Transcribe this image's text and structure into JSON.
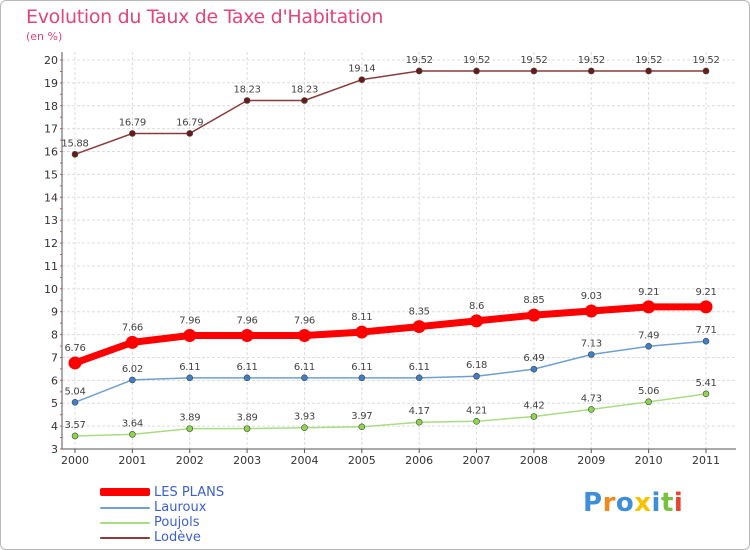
{
  "title": "Evolution du Taux de Taxe d'Habitation",
  "unit": "(en %)",
  "logo": "Proxiti",
  "chart_data": {
    "type": "line",
    "title": "Evolution du Taux de Taxe d'Habitation",
    "ylabel": "(en %)",
    "xlabel": "",
    "ylim": [
      3,
      20
    ],
    "yticks": [
      "3",
      "4",
      "5",
      "6",
      "7",
      "8",
      "9",
      "10",
      "11",
      "12",
      "13",
      "14",
      "15",
      "16",
      "17",
      "18",
      "19",
      "20"
    ],
    "categories": [
      "2000",
      "2001",
      "2002",
      "2003",
      "2004",
      "2005",
      "2006",
      "2007",
      "2008",
      "2009",
      "2010",
      "2011"
    ],
    "grid": true,
    "legend_position": "bottom-left",
    "series": [
      {
        "name": "LES PLANS",
        "color": "#ff0000",
        "marker": "#ff0000",
        "labels": [
          "6.76",
          "7.66",
          "7.96",
          "7.96",
          "7.96",
          "8.11",
          "8.35",
          "8.6",
          "8.85",
          "9.03",
          "9.21",
          "9.21"
        ],
        "values": [
          6.76,
          7.66,
          7.96,
          7.96,
          7.96,
          8.11,
          8.35,
          8.6,
          8.85,
          9.03,
          9.21,
          9.21
        ]
      },
      {
        "name": "Lauroux",
        "color": "#6f9fd3",
        "marker": "#3f7fc8",
        "labels": [
          "5.04",
          "6.02",
          "6.11",
          "6.11",
          "6.11",
          "6.11",
          "6.11",
          "6.18",
          "6.49",
          "7.13",
          "7.49",
          "7.71"
        ],
        "values": [
          5.04,
          6.02,
          6.11,
          6.11,
          6.11,
          6.11,
          6.11,
          6.18,
          6.49,
          7.13,
          7.49,
          7.71
        ]
      },
      {
        "name": "Poujols",
        "color": "#a9dc83",
        "marker": "#8bd64a",
        "labels": [
          "3.57",
          "3.64",
          "3.89",
          "3.89",
          "3.93",
          "3.97",
          "4.17",
          "4.21",
          "4.42",
          "4.73",
          "5.06",
          "5.41"
        ],
        "values": [
          3.57,
          3.64,
          3.89,
          3.89,
          3.93,
          3.97,
          4.17,
          4.21,
          4.42,
          4.73,
          5.06,
          5.41
        ]
      },
      {
        "name": "Lodève",
        "color": "#8b3b3b",
        "marker": "#6b1a1a",
        "labels": [
          "15.88",
          "16.79",
          "16.79",
          "18.23",
          "18.23",
          "19.14",
          "19.52",
          "19.52",
          "19.52",
          "19.52",
          "19.52",
          "19.52"
        ],
        "values": [
          15.88,
          16.79,
          16.79,
          18.23,
          18.23,
          19.14,
          19.52,
          19.52,
          19.52,
          19.52,
          19.52,
          19.52
        ]
      }
    ]
  }
}
